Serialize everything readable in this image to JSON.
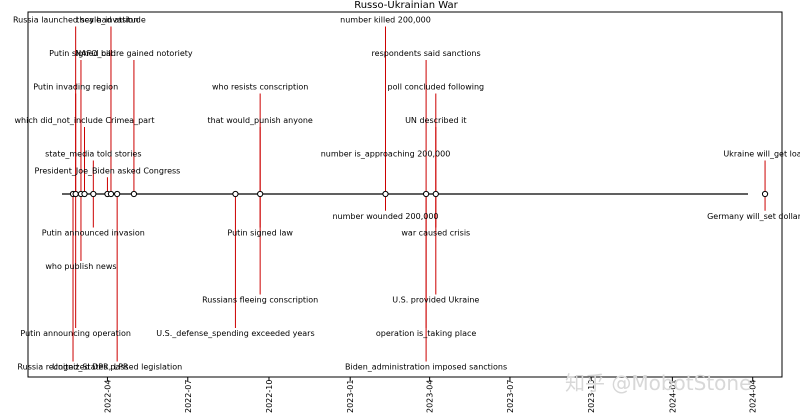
{
  "watermark": "知乎 @MobotStone",
  "chart_data": {
    "type": "timeline",
    "title": "Russo-Ukrainian War",
    "x_range": [
      "2022-01-01",
      "2024-04-30"
    ],
    "x_ticks": [
      "2022-04",
      "2022-07",
      "2022-10",
      "2023-01",
      "2023-04",
      "2023-07",
      "2023-10",
      "2024-01",
      "2024-04"
    ],
    "colors": {
      "stem": "#cc0000",
      "axis": "#000000",
      "marker_face": "#ffffff"
    },
    "events": [
      {
        "date": "2022-02-21",
        "level": -5,
        "label": "Russia recognized DPR, LPR"
      },
      {
        "date": "2022-02-24",
        "level": 5,
        "label": "Russia launched scale_invasion"
      },
      {
        "date": "2022-02-24",
        "level": -4,
        "label": "Putin announcing operation"
      },
      {
        "date": "2022-02-24",
        "level": 3,
        "label": "Putin invading region"
      },
      {
        "date": "2022-03-02",
        "level": -2,
        "label": "who publish news"
      },
      {
        "date": "2022-03-02",
        "level": 4,
        "label": "Putin signed bill"
      },
      {
        "date": "2022-03-06",
        "level": 2,
        "label": "which did_not_include Crimea_part"
      },
      {
        "date": "2022-03-16",
        "level": -1,
        "label": "Putin announced invasion"
      },
      {
        "date": "2022-03-16",
        "level": 1,
        "label": "state_media told stories"
      },
      {
        "date": "2022-04-01",
        "level": 0.5,
        "label": "President_Joe_Biden asked Congress"
      },
      {
        "date": "2022-04-05",
        "level": 5,
        "label": "they had attitude"
      },
      {
        "date": "2022-04-12",
        "level": -5,
        "label": "United_States passed legislation"
      },
      {
        "date": "2022-05-01",
        "level": 4,
        "label": "NAFO_cadre gained notoriety"
      },
      {
        "date": "2022-08-24",
        "level": -4,
        "label": "U.S._defense_spending exceeded years"
      },
      {
        "date": "2022-09-21",
        "level": -3,
        "label": "Russians fleeing conscription"
      },
      {
        "date": "2022-09-21",
        "level": -1,
        "label": "Putin signed law"
      },
      {
        "date": "2022-09-21",
        "level": 3,
        "label": "who resists conscription"
      },
      {
        "date": "2022-09-21",
        "level": 2,
        "label": "that would_punish anyone"
      },
      {
        "date": "2023-02-10",
        "level": 5,
        "label": "number killed 200,000"
      },
      {
        "date": "2023-02-10",
        "level": 1,
        "label": "number is_approaching 200,000"
      },
      {
        "date": "2023-02-10",
        "level": -0.5,
        "label": "number wounded 200,000"
      },
      {
        "date": "2023-03-28",
        "level": 4,
        "label": "respondents said sanctions"
      },
      {
        "date": "2023-03-28",
        "level": -4,
        "label": "operation is_taking place"
      },
      {
        "date": "2023-03-28",
        "level": -5,
        "label": "Biden_administration imposed sanctions"
      },
      {
        "date": "2023-04-08",
        "level": 3,
        "label": "poll concluded following"
      },
      {
        "date": "2023-04-08",
        "level": 2,
        "label": "UN described it"
      },
      {
        "date": "2023-04-08",
        "level": -1,
        "label": "war caused crisis"
      },
      {
        "date": "2023-04-08",
        "level": -3,
        "label": "U.S. provided Ukraine"
      },
      {
        "date": "2024-04-15",
        "level": 1,
        "label": "Ukraine will_get loan"
      },
      {
        "date": "2024-04-15",
        "level": -0.5,
        "label": "Germany will_set dollar_fund"
      }
    ]
  }
}
